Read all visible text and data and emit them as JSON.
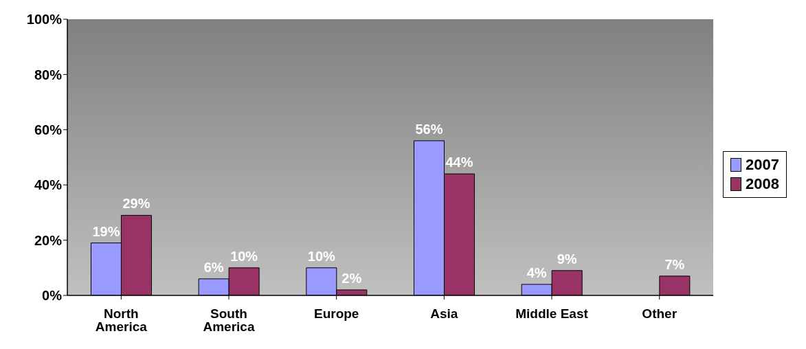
{
  "chart_data": {
    "type": "bar",
    "categories": [
      "North America",
      "South America",
      "Europe",
      "Asia",
      "Middle East",
      "Other"
    ],
    "series": [
      {
        "name": "2007",
        "color": "#9999ff",
        "values": [
          19,
          6,
          10,
          56,
          4,
          null
        ],
        "value_labels": [
          "19%",
          "6%",
          "10%",
          "56%",
          "4%",
          null
        ]
      },
      {
        "name": "2008",
        "color": "#993366",
        "values": [
          29,
          10,
          2,
          44,
          9,
          7
        ],
        "value_labels": [
          "29%",
          "10%",
          "2%",
          "44%",
          "9%",
          "7%"
        ]
      }
    ],
    "ylim": [
      0,
      100
    ],
    "yticks": [
      {
        "value": 0,
        "label": "0%"
      },
      {
        "value": 20,
        "label": "20%"
      },
      {
        "value": 40,
        "label": "40%"
      },
      {
        "value": 60,
        "label": "60%"
      },
      {
        "value": 80,
        "label": "80%"
      },
      {
        "value": 100,
        "label": "100%"
      }
    ],
    "grid": false,
    "legend": "right"
  }
}
